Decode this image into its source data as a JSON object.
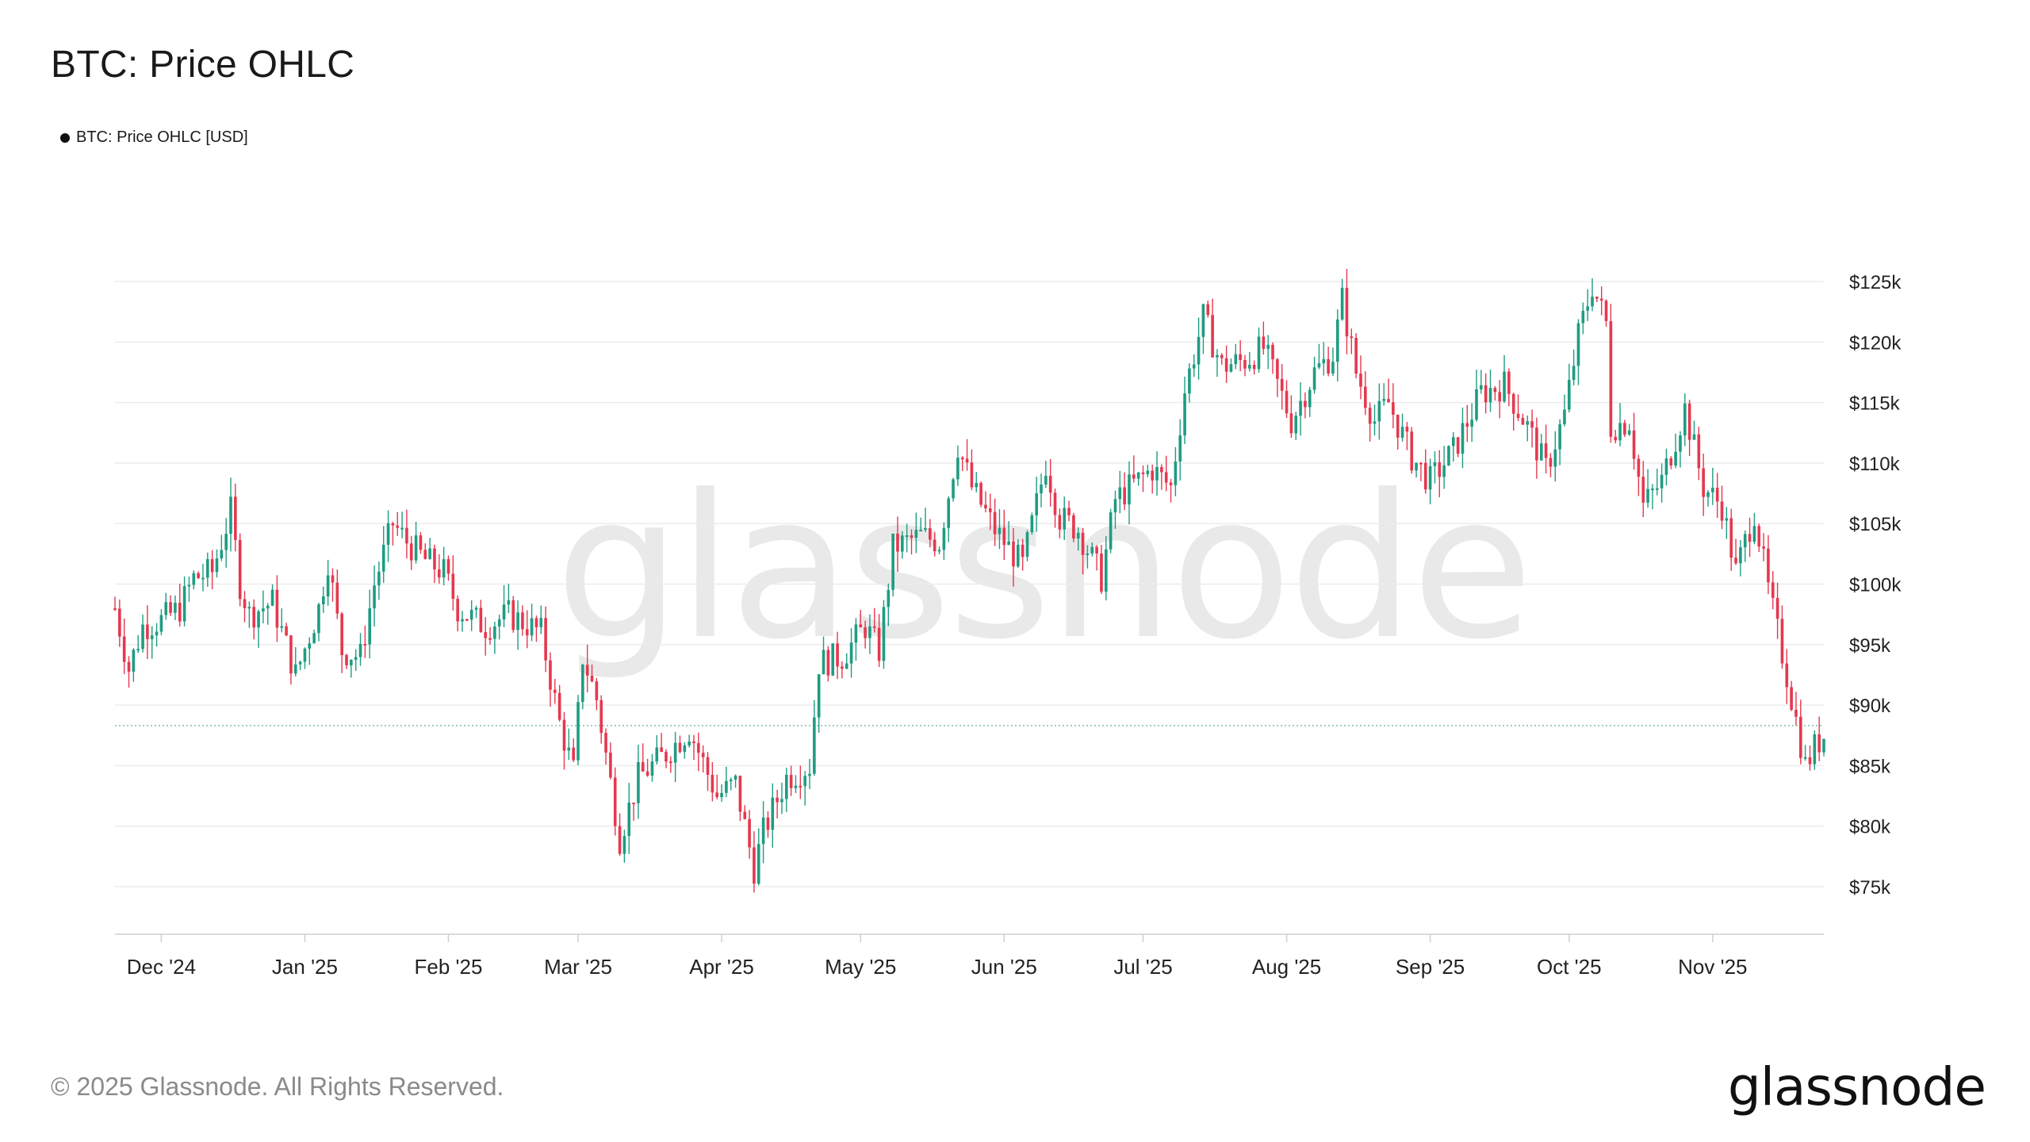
{
  "title": "BTC: Price OHLC",
  "legend": {
    "label": "BTC: Price OHLC [USD]",
    "color": "#111111"
  },
  "watermark": "glassnode",
  "footer": {
    "copyright": "© 2025 Glassnode. All Rights Reserved.",
    "logo": "glassnode"
  },
  "colors": {
    "up": "#1f9c82",
    "down": "#e5384f",
    "grid": "#ececec",
    "axis_text": "#222222",
    "ref_line": "#7fbfb0"
  },
  "chart_data": {
    "type": "candlestick",
    "title": "BTC: Price OHLC",
    "series_name": "BTC: Price OHLC [USD]",
    "unit": "USD",
    "ylim": [
      71000,
      126500
    ],
    "y_ticks": [
      75000,
      80000,
      85000,
      90000,
      95000,
      100000,
      105000,
      110000,
      115000,
      120000,
      125000
    ],
    "y_tick_labels": [
      "$75k",
      "$80k",
      "$85k",
      "$90k",
      "$95k",
      "$100k",
      "$105k",
      "$110k",
      "$115k",
      "$120k",
      "$125k"
    ],
    "x_range": [
      "2024-11-21",
      "2025-11-25"
    ],
    "x_ticks": [
      "2024-12-01",
      "2025-01-01",
      "2025-02-01",
      "2025-03-01",
      "2025-04-01",
      "2025-05-01",
      "2025-06-01",
      "2025-07-01",
      "2025-08-01",
      "2025-09-01",
      "2025-10-01",
      "2025-11-01"
    ],
    "x_tick_labels": [
      "Dec '24",
      "Jan '25",
      "Feb '25",
      "Mar '25",
      "Apr '25",
      "May '25",
      "Jun '25",
      "Jul '25",
      "Aug '25",
      "Sep '25",
      "Oct '25",
      "Nov '25"
    ],
    "reference_line": 88300,
    "grid": true,
    "legend_position": "top-left",
    "anchor_closes": [
      [
        "2024-11-21",
        98000
      ],
      [
        "2024-11-24",
        93000
      ],
      [
        "2024-11-27",
        96500
      ],
      [
        "2024-12-01",
        97000
      ],
      [
        "2024-12-05",
        98000
      ],
      [
        "2024-12-08",
        100500
      ],
      [
        "2024-12-12",
        101000
      ],
      [
        "2024-12-16",
        106000
      ],
      [
        "2024-12-18",
        100000
      ],
      [
        "2024-12-20",
        97500
      ],
      [
        "2024-12-25",
        98500
      ],
      [
        "2024-12-30",
        92500
      ],
      [
        "2025-01-04",
        98000
      ],
      [
        "2025-01-06",
        102000
      ],
      [
        "2025-01-09",
        94500
      ],
      [
        "2025-01-13",
        94000
      ],
      [
        "2025-01-16",
        100000
      ],
      [
        "2025-01-20",
        105000
      ],
      [
        "2025-01-23",
        103500
      ],
      [
        "2025-01-27",
        102000
      ],
      [
        "2025-01-31",
        101000
      ],
      [
        "2025-02-03",
        98000
      ],
      [
        "2025-02-09",
        96500
      ],
      [
        "2025-02-14",
        97500
      ],
      [
        "2025-02-21",
        96000
      ],
      [
        "2025-02-25",
        88500
      ],
      [
        "2025-02-28",
        84500
      ],
      [
        "2025-03-02",
        94000
      ],
      [
        "2025-03-05",
        90500
      ],
      [
        "2025-03-10",
        79000
      ],
      [
        "2025-03-14",
        84000
      ],
      [
        "2025-03-20",
        86000
      ],
      [
        "2025-03-25",
        88000
      ],
      [
        "2025-03-31",
        82500
      ],
      [
        "2025-04-04",
        83500
      ],
      [
        "2025-04-08",
        76500
      ],
      [
        "2025-04-10",
        79500
      ],
      [
        "2025-04-15",
        84000
      ],
      [
        "2025-04-20",
        85000
      ],
      [
        "2025-04-22",
        93500
      ],
      [
        "2025-04-27",
        94000
      ],
      [
        "2025-05-02",
        96500
      ],
      [
        "2025-05-05",
        94500
      ],
      [
        "2025-05-08",
        103000
      ],
      [
        "2025-05-14",
        104000
      ],
      [
        "2025-05-18",
        103500
      ],
      [
        "2025-05-22",
        111500
      ],
      [
        "2025-05-25",
        108000
      ],
      [
        "2025-05-30",
        104500
      ],
      [
        "2025-06-05",
        101500
      ],
      [
        "2025-06-10",
        110000
      ],
      [
        "2025-06-13",
        105500
      ],
      [
        "2025-06-17",
        104500
      ],
      [
        "2025-06-22",
        100500
      ],
      [
        "2025-06-25",
        107000
      ],
      [
        "2025-07-03",
        109500
      ],
      [
        "2025-07-07",
        108000
      ],
      [
        "2025-07-10",
        116000
      ],
      [
        "2025-07-14",
        122000
      ],
      [
        "2025-07-18",
        118000
      ],
      [
        "2025-07-23",
        118500
      ],
      [
        "2025-07-27",
        119500
      ],
      [
        "2025-08-02",
        113500
      ],
      [
        "2025-08-07",
        117500
      ],
      [
        "2025-08-11",
        119000
      ],
      [
        "2025-08-13",
        123500
      ],
      [
        "2025-08-16",
        117500
      ],
      [
        "2025-08-20",
        113500
      ],
      [
        "2025-08-23",
        115000
      ],
      [
        "2025-08-28",
        110500
      ],
      [
        "2025-09-01",
        108500
      ],
      [
        "2025-09-06",
        111000
      ],
      [
        "2025-09-12",
        115800
      ],
      [
        "2025-09-17",
        116500
      ],
      [
        "2025-09-22",
        113000
      ],
      [
        "2025-09-26",
        109500
      ],
      [
        "2025-09-30",
        114000
      ],
      [
        "2025-10-03",
        120500
      ],
      [
        "2025-10-06",
        124700
      ],
      [
        "2025-10-09",
        121500
      ],
      [
        "2025-10-10",
        113000
      ],
      [
        "2025-10-14",
        113500
      ],
      [
        "2025-10-17",
        106500
      ],
      [
        "2025-10-21",
        108500
      ],
      [
        "2025-10-26",
        114500
      ],
      [
        "2025-10-30",
        108000
      ],
      [
        "2025-11-03",
        106500
      ],
      [
        "2025-11-06",
        101000
      ],
      [
        "2025-11-10",
        106000
      ],
      [
        "2025-11-13",
        99500
      ],
      [
        "2025-11-17",
        92500
      ],
      [
        "2025-11-21",
        85000
      ],
      [
        "2025-11-23",
        86500
      ],
      [
        "2025-11-25",
        87500
      ]
    ]
  }
}
